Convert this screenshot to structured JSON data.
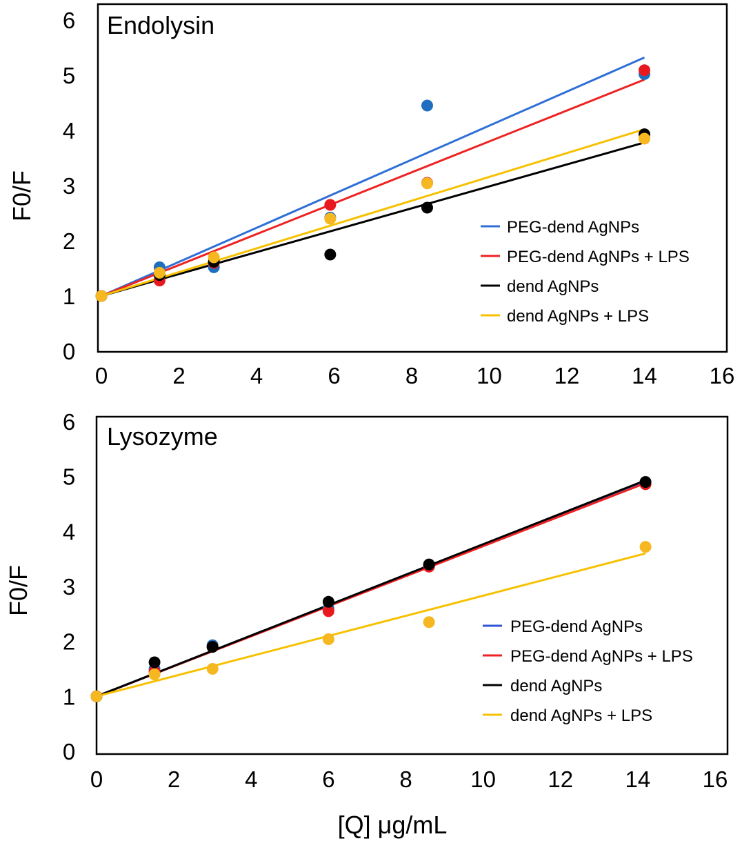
{
  "figure": {
    "xlabel": "[Q] μg/mL"
  },
  "chart_data": [
    {
      "type": "scatter",
      "title": "Endolysin",
      "xlabel": "",
      "ylabel": "F0/F",
      "xlim": [
        0,
        16
      ],
      "ylim": [
        0,
        6
      ],
      "xticks": [
        "0",
        "2",
        "4",
        "6",
        "8",
        "10",
        "12",
        "14",
        "16"
      ],
      "yticks": [
        "0",
        "1",
        "2",
        "3",
        "4",
        "5",
        "6"
      ],
      "legend_position": "right",
      "series": [
        {
          "name": "PEG-dend AgNPs",
          "color": "#1e6fc0",
          "line_color": "#2f6fd6",
          "x": [
            0,
            1.5,
            2.9,
            5.9,
            8.4,
            14.0
          ],
          "y": [
            1.0,
            1.52,
            1.52,
            2.42,
            4.45,
            5.02
          ],
          "fit": {
            "x": [
              0,
              14.0
            ],
            "y": [
              1.0,
              5.32
            ]
          }
        },
        {
          "name": "PEG-dend AgNPs + LPS",
          "color": "#e8191e",
          "line_color": "#ee2222",
          "x": [
            0,
            1.5,
            2.9,
            5.9,
            8.4,
            14.0
          ],
          "y": [
            1.0,
            1.28,
            1.6,
            2.65,
            3.05,
            5.09
          ],
          "fit": {
            "x": [
              0,
              14.0
            ],
            "y": [
              1.0,
              4.92
            ]
          }
        },
        {
          "name": "dend AgNPs",
          "color": "#000000",
          "line_color": "#000000",
          "x": [
            0,
            1.5,
            2.9,
            5.9,
            8.4,
            14.0
          ],
          "y": [
            1.0,
            1.38,
            1.62,
            1.75,
            2.6,
            3.93
          ],
          "fit": {
            "x": [
              0,
              14.0
            ],
            "y": [
              1.0,
              3.78
            ]
          }
        },
        {
          "name": "dend AgNPs + LPS",
          "color": "#f5b820",
          "line_color": "#f6c100",
          "x": [
            0,
            1.5,
            2.9,
            5.9,
            8.4,
            14.0
          ],
          "y": [
            1.0,
            1.42,
            1.7,
            2.4,
            3.04,
            3.85
          ],
          "fit": {
            "x": [
              0,
              14.0
            ],
            "y": [
              1.0,
              4.02
            ]
          }
        }
      ]
    },
    {
      "type": "scatter",
      "title": "Lysozyme",
      "xlabel": "[Q] μg/mL",
      "ylabel": "F0/F",
      "xlim": [
        0,
        16
      ],
      "ylim": [
        0,
        6
      ],
      "xticks": [
        "0",
        "2",
        "4",
        "6",
        "8",
        "10",
        "12",
        "14",
        "16"
      ],
      "yticks": [
        "0",
        "1",
        "2",
        "3",
        "4",
        "5",
        "6"
      ],
      "legend_position": "right",
      "series": [
        {
          "name": "PEG-dend AgNPs",
          "color": "#1e6fc0",
          "line_color": "#2f55d6",
          "x": [
            0,
            1.5,
            3.0,
            6.0,
            8.6,
            14.2
          ],
          "y": [
            1.0,
            1.5,
            1.93,
            2.6,
            3.38,
            4.9
          ],
          "fit": {
            "x": [
              0,
              14.2
            ],
            "y": [
              1.0,
              4.92
            ]
          }
        },
        {
          "name": "PEG-dend AgNPs + LPS",
          "color": "#e8191e",
          "line_color": "#ee2222",
          "x": [
            0,
            1.5,
            3.0,
            6.0,
            8.6,
            14.2
          ],
          "y": [
            1.0,
            1.45,
            1.9,
            2.55,
            3.36,
            4.86
          ],
          "fit": {
            "x": [
              0,
              14.2
            ],
            "y": [
              1.0,
              4.88
            ]
          }
        },
        {
          "name": "dend AgNPs",
          "color": "#000000",
          "line_color": "#000000",
          "x": [
            0,
            1.5,
            3.0,
            6.0,
            8.6,
            14.2
          ],
          "y": [
            1.0,
            1.62,
            1.9,
            2.72,
            3.4,
            4.9
          ],
          "fit": {
            "x": [
              0,
              14.2
            ],
            "y": [
              1.0,
              4.93
            ]
          }
        },
        {
          "name": "dend AgNPs + LPS",
          "color": "#f5b820",
          "line_color": "#f6c100",
          "x": [
            0,
            1.5,
            3.0,
            6.0,
            8.6,
            14.2
          ],
          "y": [
            1.0,
            1.4,
            1.5,
            2.04,
            2.35,
            3.72
          ],
          "fit": {
            "x": [
              0,
              14.2
            ],
            "y": [
              1.0,
              3.6
            ]
          }
        }
      ]
    }
  ]
}
